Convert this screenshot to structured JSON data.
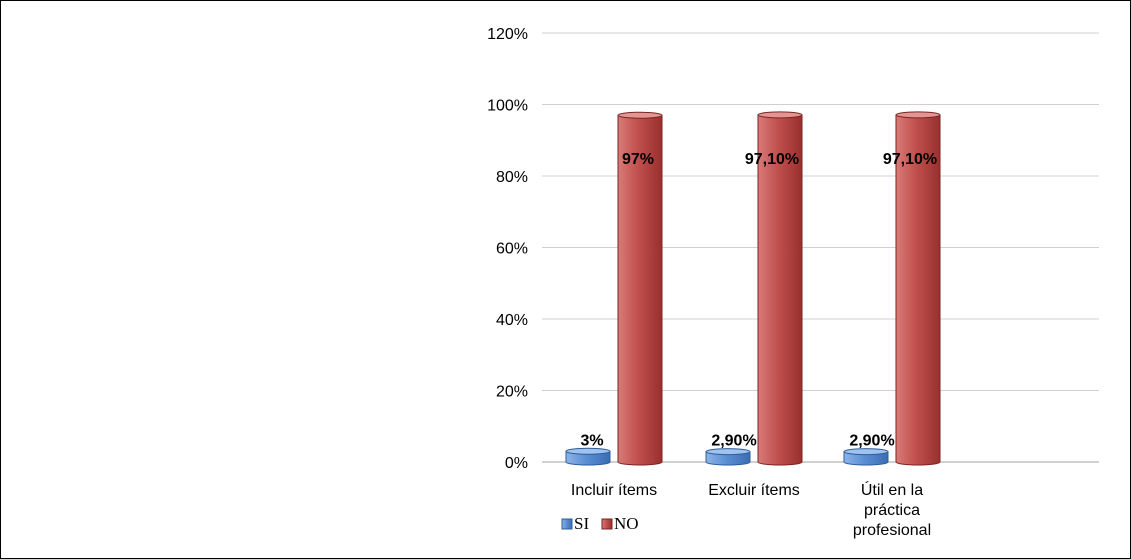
{
  "chart_data": {
    "type": "bar",
    "style": "3d-cylinder-bars",
    "categories": [
      [
        "Incluir ítems"
      ],
      [
        "Excluir ítems"
      ],
      [
        "Útil en la",
        "práctica",
        "profesional"
      ]
    ],
    "series": [
      {
        "name": "SI",
        "values": [
          3,
          2.9,
          2.9
        ],
        "labels": [
          "3%",
          "2,90%",
          "2,90%"
        ],
        "color": "#5b8fd4"
      },
      {
        "name": "NO",
        "values": [
          97,
          97.1,
          97.1
        ],
        "labels": [
          "97%",
          "97,10%",
          "97,10%"
        ],
        "color": "#c0504d"
      }
    ],
    "ylim": [
      0,
      120
    ],
    "yticks": [
      0,
      20,
      40,
      60,
      80,
      100,
      120
    ],
    "ytick_labels": [
      "0%",
      "20%",
      "40%",
      "60%",
      "80%",
      "100%",
      "120%"
    ],
    "grid": true,
    "legend": "bottom-left"
  }
}
